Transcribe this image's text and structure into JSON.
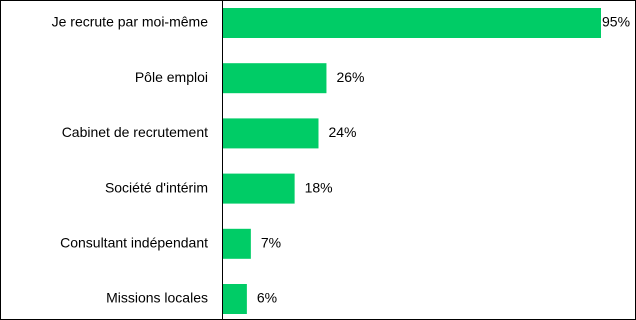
{
  "chart_data": {
    "type": "bar",
    "orientation": "horizontal",
    "categories": [
      "Je recrute par moi-même",
      "Pôle emploi",
      "Cabinet de recrutement",
      "Société d'intérim",
      "Consultant indépendant",
      "Missions locales"
    ],
    "values": [
      95,
      26,
      24,
      18,
      7,
      6
    ],
    "value_labels": [
      "95%",
      "26%",
      "24%",
      "18%",
      "7%",
      "6%"
    ],
    "unit": "%",
    "xlim": [
      0,
      100
    ],
    "title": "",
    "xlabel": "",
    "ylabel": "",
    "grid": false,
    "legend": "none",
    "bar_color": "#00cc66"
  }
}
